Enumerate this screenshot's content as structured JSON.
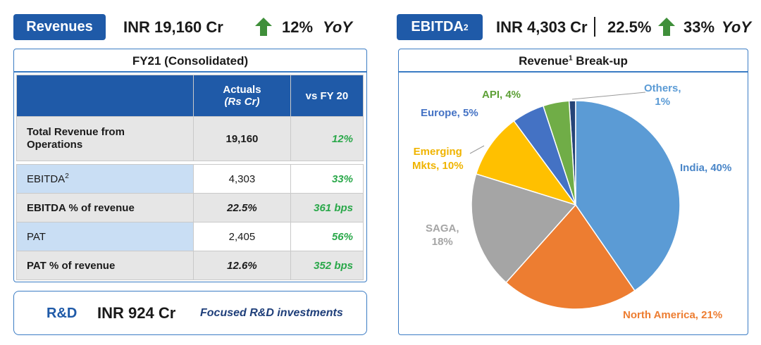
{
  "header_left": {
    "pill_label": "Revenues",
    "value": "INR 19,160 Cr",
    "yoy_value": "12%",
    "yoy_label": "YoY"
  },
  "header_right": {
    "pill_label": "EBITDA",
    "pill_sup": "2",
    "value": "INR 4,303 Cr",
    "margin": "22.5%",
    "yoy_value": "33%",
    "yoy_label": "YoY"
  },
  "colors": {
    "brand_blue": "#1f5aa8",
    "growth_green": "#2aa84a",
    "arrow_green": "#3f8f3a"
  },
  "table": {
    "title": "FY21 (Consolidated)",
    "col_actuals": "Actuals",
    "col_actuals_unit": "(Rs Cr)",
    "col_vs": "vs FY 20",
    "rows": [
      {
        "label": "Total Revenue from Operations",
        "actual": "19,160",
        "vs": "12%"
      },
      {
        "label": "EBITDA",
        "label_sup": "2",
        "actual": "4,303",
        "vs": "33%"
      },
      {
        "label": "EBITDA % of revenue",
        "actual": "22.5%",
        "vs": "361 bps"
      },
      {
        "label": "PAT",
        "actual": "2,405",
        "vs": "56%"
      },
      {
        "label": "PAT % of revenue",
        "actual": "12.6%",
        "vs": "352 bps"
      }
    ]
  },
  "rnd": {
    "label": "R&D",
    "value": "INR 924 Cr",
    "note": "Focused R&D investments"
  },
  "chart_data": {
    "type": "pie",
    "title": "Revenue",
    "title_sup": "1",
    "title_suffix": "Break-up",
    "slices": [
      {
        "name": "India",
        "value": 40,
        "label": "India, 40%",
        "color": "#5b9bd5",
        "label_color": "#4a86c8"
      },
      {
        "name": "North America",
        "value": 21,
        "label": "North America, 21%",
        "color": "#ed7d31",
        "label_color": "#ed7d31"
      },
      {
        "name": "SAGA",
        "value": 18,
        "label_line1": "SAGA,",
        "label_line2": "18%",
        "color": "#a5a5a5",
        "label_color": "#a5a5a5"
      },
      {
        "name": "Emerging Mkts",
        "value": 10,
        "label_line1": "Emerging",
        "label_line2": "Mkts, 10%",
        "color": "#ffc000",
        "label_color": "#f0b400"
      },
      {
        "name": "Europe",
        "value": 5,
        "label": "Europe, 5%",
        "color": "#4472c4",
        "label_color": "#4472c4"
      },
      {
        "name": "API",
        "value": 4,
        "label": "API, 4%",
        "color": "#70ad47",
        "label_color": "#5da036"
      },
      {
        "name": "Others",
        "value": 1,
        "label_line1": "Others,",
        "label_line2": "1%",
        "color": "#264478",
        "label_color": "#5b9bd5"
      }
    ]
  }
}
